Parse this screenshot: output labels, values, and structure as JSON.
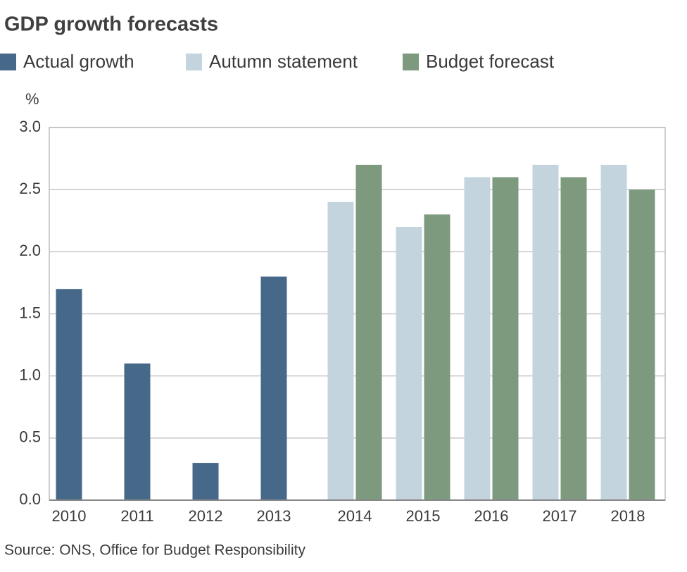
{
  "chart_data": {
    "type": "bar",
    "title": "GDP growth forecasts",
    "y_label": "%",
    "source": "Source: ONS, Office for Budget Responsibility",
    "categories": [
      "2010",
      "2011",
      "2012",
      "2013",
      "2014",
      "2015",
      "2016",
      "2017",
      "2018"
    ],
    "series": [
      {
        "name": "Actual growth",
        "color": "#46698a",
        "values": [
          1.7,
          1.1,
          0.3,
          1.8,
          null,
          null,
          null,
          null,
          null
        ]
      },
      {
        "name": "Autumn statement",
        "color": "#c3d4df",
        "values": [
          null,
          null,
          null,
          null,
          2.4,
          2.2,
          2.6,
          2.7,
          2.7
        ]
      },
      {
        "name": "Budget forecast",
        "color": "#7e9a7e",
        "values": [
          null,
          null,
          null,
          null,
          2.7,
          2.3,
          2.6,
          2.6,
          2.5
        ]
      }
    ],
    "ylim": [
      0,
      3
    ],
    "yticks": [
      {
        "value": 0,
        "label": "0.0"
      },
      0.5,
      {
        "value": 1,
        "label": "1.0"
      },
      1.5,
      {
        "value": 2,
        "label": "2.0"
      },
      2.5,
      {
        "value": 3,
        "label": "3.0"
      }
    ],
    "grid": true
  }
}
